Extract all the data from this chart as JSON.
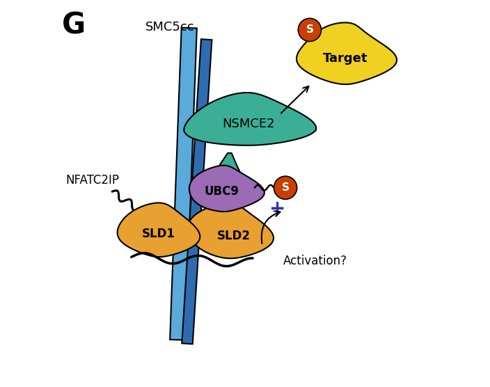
{
  "panel_label": "G",
  "background_color": "#ffffff",
  "figsize": [
    7.04,
    5.56
  ],
  "dpi": 100,
  "colors": {
    "sld_orange": "#E8A030",
    "nsmce2_teal": "#3BAF96",
    "ubc9_purple": "#9B6BB5",
    "target_yellow": "#F0D020",
    "sumo_orange_red": "#C84000",
    "smc5_blue_light": "#5AAADC",
    "smc5_blue_dark": "#2E6CB0",
    "black": "#000000",
    "purple_plus": "#3333BB",
    "white": "#ffffff"
  },
  "labels": {
    "panel": "G",
    "smc5cc": "SMC5cc",
    "nsmce2": "NSMCE2",
    "ubc9": "UBC9",
    "sld1": "SLD1",
    "sld2": "SLD2",
    "target": "Target",
    "sumo": "S",
    "nfatc2ip": "NFATC2IP",
    "activation": "Activation?"
  }
}
